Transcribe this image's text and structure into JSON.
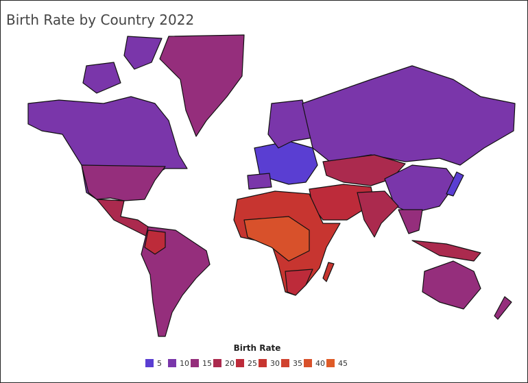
{
  "chart_data": {
    "type": "choropleth",
    "title": "Birth Rate by Country 2022",
    "legend": {
      "title": "Birth Rate",
      "items": [
        {
          "value": 5,
          "color": "#5a3ed2"
        },
        {
          "value": 10,
          "color": "#7a36aa"
        },
        {
          "value": 15,
          "color": "#952e7c"
        },
        {
          "value": 20,
          "color": "#ab2a4e"
        },
        {
          "value": 25,
          "color": "#bd2b3a"
        },
        {
          "value": 30,
          "color": "#c73530"
        },
        {
          "value": 35,
          "color": "#d0432f"
        },
        {
          "value": 40,
          "color": "#d8512b"
        },
        {
          "value": 45,
          "color": "#df5b27"
        }
      ]
    }
  }
}
